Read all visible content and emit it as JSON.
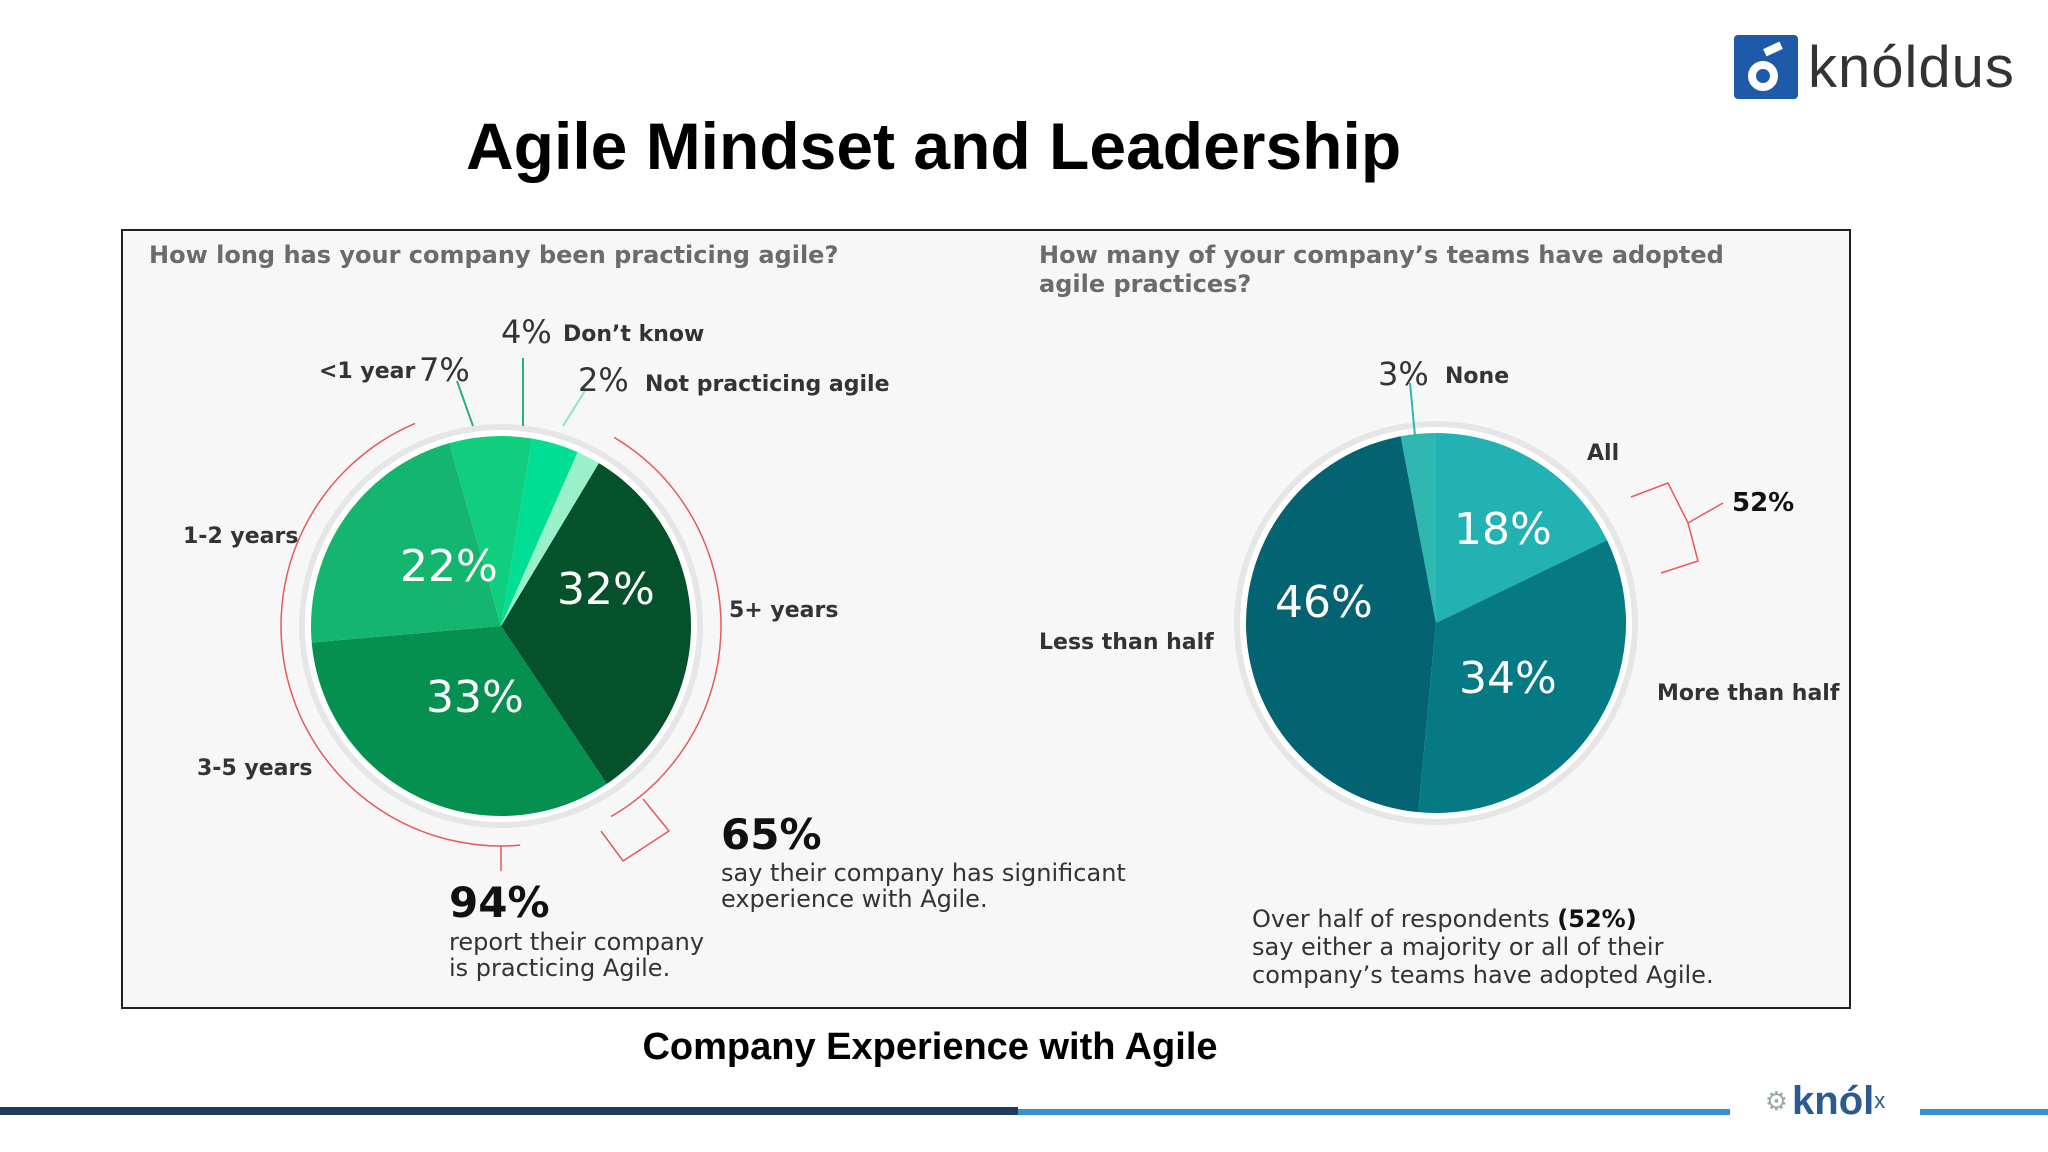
{
  "title": "Agile Mindset and Leadership",
  "logo": {
    "text": "knóldus"
  },
  "caption": "Company Experience with Agile",
  "footer": {
    "brand": "knól",
    "brand_sup": "x",
    "dots": "⚙"
  },
  "colors": {
    "left_pie": [
      "#05512b",
      "#05904f",
      "#14b56e",
      "#11cd7e",
      "#00df93",
      "#9af0ca"
    ],
    "right_pie": [
      "#23b2b4",
      "#067a84",
      "#036370",
      "#2fb7b2"
    ],
    "bracket": "#e55a5a"
  },
  "chart_data": [
    {
      "type": "pie",
      "title": "How long has your company been practicing agile?",
      "slices": [
        {
          "label": "5+ years",
          "value": 32,
          "value_label": "32%"
        },
        {
          "label": "3-5 years",
          "value": 33,
          "value_label": "33%"
        },
        {
          "label": "1-2 years",
          "value": 22,
          "value_label": "22%"
        },
        {
          "label": "<1 year",
          "value": 7,
          "value_label": "7%"
        },
        {
          "label": "Don’t know",
          "value": 4,
          "value_label": "4%"
        },
        {
          "label": "Not practicing agile",
          "value": 2,
          "value_label": "2%"
        }
      ],
      "callouts": [
        {
          "value": "94%",
          "text_line1": "report their company",
          "text_line2": "is practicing Agile."
        },
        {
          "value": "65%",
          "text_line1": "say their company has significant",
          "text_line2": "experience with Agile."
        }
      ]
    },
    {
      "type": "pie",
      "title_line1": "How many of your company’s teams have adopted",
      "title_line2": "agile practices?",
      "slices": [
        {
          "label": "All",
          "value": 18,
          "value_label": "18%"
        },
        {
          "label": "More than half",
          "value": 34,
          "value_label": "34%"
        },
        {
          "label": "Less than half",
          "value": 46,
          "value_label": "46%"
        },
        {
          "label": "None",
          "value": 3,
          "value_label": "3%"
        }
      ],
      "bracket_value": "52%",
      "summary_line1": "Over half of respondents ",
      "summary_bold": "(52%)",
      "summary_line2": "say either a majority or all of their",
      "summary_line3": "company’s teams have adopted Agile."
    }
  ]
}
